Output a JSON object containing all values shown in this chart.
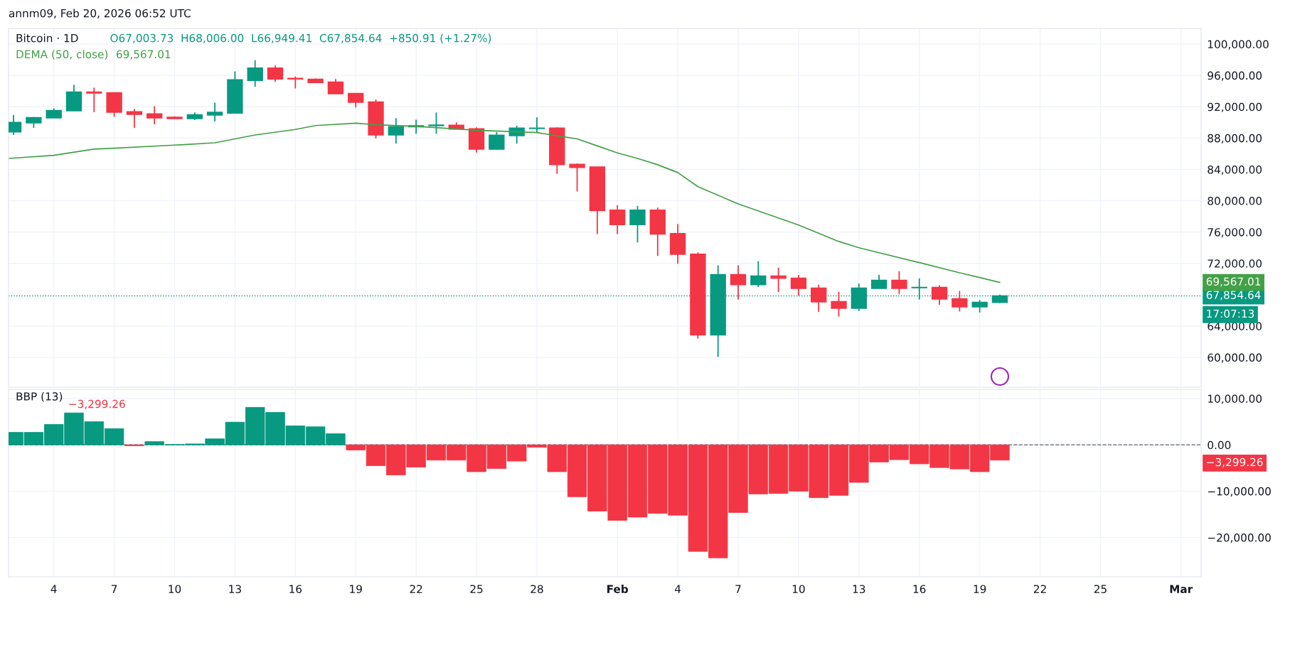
{
  "chart_data": [
    {
      "type": "candlestick",
      "title": "Bitcoin · 1D",
      "subtitle": "O67,003.73  H68,006.00  L66,949.41  C67,854.64  +850.91 (+1.27%)",
      "annotations": [
        "annm09, Feb 20, 2026 06:52 UTC",
        "17:07:13",
        "69,567.01"
      ],
      "x": [
        "2026-01-02",
        "2026-01-03",
        "2026-01-04",
        "2026-01-05",
        "2026-01-06",
        "2026-01-07",
        "2026-01-08",
        "2026-01-09",
        "2026-01-10",
        "2026-01-11",
        "2026-01-12",
        "2026-01-13",
        "2026-01-14",
        "2026-01-15",
        "2026-01-16",
        "2026-01-17",
        "2026-01-18",
        "2026-01-19",
        "2026-01-20",
        "2026-01-21",
        "2026-01-22",
        "2026-01-23",
        "2026-01-24",
        "2026-01-25",
        "2026-01-26",
        "2026-01-27",
        "2026-01-28",
        "2026-01-29",
        "2026-01-30",
        "2026-01-31",
        "2026-02-01",
        "2026-02-02",
        "2026-02-03",
        "2026-02-04",
        "2026-02-05",
        "2026-02-06",
        "2026-02-07",
        "2026-02-08",
        "2026-02-09",
        "2026-02-10",
        "2026-02-11",
        "2026-02-12",
        "2026-02-13",
        "2026-02-14",
        "2026-02-15",
        "2026-02-16",
        "2026-02-17",
        "2026-02-18",
        "2026-02-19",
        "2026-02-20"
      ],
      "ohlc": [
        [
          88770,
          90960,
          88400,
          90000
        ],
        [
          89940,
          90690,
          89310,
          90630
        ],
        [
          90570,
          91780,
          90570,
          91540
        ],
        [
          91480,
          94790,
          91480,
          93890
        ],
        [
          93890,
          94430,
          91300,
          93740
        ],
        [
          93800,
          93800,
          90720,
          91300
        ],
        [
          91360,
          91720,
          89310,
          91020
        ],
        [
          91090,
          92080,
          89760,
          90570
        ],
        [
          90660,
          90780,
          90480,
          90480
        ],
        [
          90480,
          91270,
          90300,
          90990
        ],
        [
          90930,
          92530,
          90120,
          91300
        ],
        [
          91180,
          96510,
          91120,
          95450
        ],
        [
          95360,
          97950,
          94550,
          96960
        ],
        [
          96960,
          97260,
          95180,
          95540
        ],
        [
          95630,
          95870,
          94340,
          95540
        ],
        [
          95510,
          95600,
          95090,
          95090
        ],
        [
          95150,
          95540,
          93650,
          93650
        ],
        [
          93710,
          93710,
          91900,
          92560
        ],
        [
          92620,
          92920,
          87950,
          88400
        ],
        [
          88400,
          90540,
          87290,
          89460
        ],
        [
          89430,
          90360,
          88550,
          89580
        ],
        [
          89580,
          91270,
          88550,
          89670
        ],
        [
          89640,
          90000,
          89130,
          89130
        ],
        [
          89190,
          89370,
          86150,
          86570
        ],
        [
          86570,
          88770,
          86510,
          88370
        ],
        [
          88310,
          89580,
          87290,
          89280
        ],
        [
          89220,
          90630,
          88770,
          89280
        ],
        [
          89280,
          89370,
          83430,
          84610
        ],
        [
          84670,
          84760,
          81180,
          84250
        ],
        [
          84310,
          84310,
          75750,
          78740
        ],
        [
          78800,
          79430,
          75750,
          76930
        ],
        [
          76930,
          79340,
          74670,
          78800
        ],
        [
          78800,
          79130,
          72950,
          75750
        ],
        [
          75810,
          77020,
          71960,
          73160
        ],
        [
          73190,
          73400,
          62410,
          62860
        ],
        [
          62860,
          71750,
          60060,
          70570
        ],
        [
          70570,
          71750,
          67380,
          69280
        ],
        [
          69280,
          72290,
          68980,
          70390
        ],
        [
          70390,
          71450,
          68340,
          70090
        ],
        [
          70120,
          70540,
          67890,
          68800
        ],
        [
          68860,
          69280,
          65810,
          67080
        ],
        [
          67140,
          68370,
          65210,
          66270
        ],
        [
          66270,
          69430,
          65930,
          68860
        ],
        [
          68800,
          70540,
          68800,
          69850
        ],
        [
          69850,
          71000,
          68070,
          68800
        ],
        [
          68890,
          70090,
          67380,
          68950
        ],
        [
          68950,
          69190,
          66720,
          67440
        ],
        [
          67500,
          68490,
          65870,
          66450
        ],
        [
          66450,
          67320,
          65720,
          67050
        ],
        [
          67003.73,
          68006.0,
          66949.41,
          67854.64
        ]
      ],
      "colors": [
        "#089981",
        "#089981",
        "#089981",
        "#089981",
        "#f23645",
        "#f23645",
        "#f23645",
        "#f23645",
        "#f23645",
        "#089981",
        "#089981",
        "#089981",
        "#089981",
        "#f23645",
        "#f23645",
        "#f23645",
        "#f23645",
        "#f23645",
        "#f23645",
        "#089981",
        "#089981",
        "#089981",
        "#f23645",
        "#f23645",
        "#089981",
        "#089981",
        "#089981",
        "#f23645",
        "#f23645",
        "#f23645",
        "#f23645",
        "#089981",
        "#f23645",
        "#f23645",
        "#f23645",
        "#089981",
        "#f23645",
        "#089981",
        "#f23645",
        "#f23645",
        "#f23645",
        "#f23645",
        "#089981",
        "#089981",
        "#f23645",
        "#089981",
        "#f23645",
        "#f23645",
        "#089981",
        "#089981"
      ],
      "series": [
        {
          "type": "line",
          "name": "DEMA (50, close)",
          "color": "#43a047",
          "x": [
            "2026-01-01T19:00",
            "2026-01-04",
            "2026-01-06",
            "2026-01-07",
            "2026-01-10",
            "2026-01-12",
            "2026-01-13",
            "2026-01-14",
            "2026-01-16",
            "2026-01-17",
            "2026-01-19",
            "2026-01-20",
            "2026-01-22",
            "2026-01-25",
            "2026-01-28",
            "2026-01-29",
            "2026-01-30",
            "2026-01-31",
            "2026-02-01",
            "2026-02-02",
            "2026-02-03",
            "2026-02-04",
            "2026-02-05",
            "2026-02-07",
            "2026-02-10",
            "2026-02-12",
            "2026-02-13",
            "2026-02-16",
            "2026-02-18",
            "2026-02-19",
            "2026-02-20"
          ],
          "values": [
            85400,
            85800,
            86600,
            86700,
            87100,
            87400,
            87900,
            88400,
            89100,
            89600,
            89900,
            89700,
            89500,
            89000,
            88700,
            88300,
            87900,
            87000,
            86100,
            85400,
            84600,
            83600,
            81800,
            79600,
            76900,
            74800,
            74000,
            72100,
            70800,
            70200,
            69567.01
          ]
        }
      ],
      "ref_lines": [
        {
          "axis": "y",
          "value": 67854.64,
          "label": "67,854.64",
          "color": "#089981",
          "line_style": "dotted"
        }
      ],
      "xlim": [
        "2026-01-01T18:00",
        "2026-03-02T00:00"
      ],
      "ylim": [
        56200,
        102000
      ],
      "xticks": [
        {
          "value": "2026-01-04",
          "label": null
        },
        {
          "value": "2026-01-07",
          "label": null
        },
        {
          "value": "2026-01-10",
          "label": null
        },
        {
          "value": "2026-01-13",
          "label": null
        },
        {
          "value": "2026-01-16",
          "label": null
        },
        {
          "value": "2026-01-19",
          "label": null
        },
        {
          "value": "2026-01-22",
          "label": null
        },
        {
          "value": "2026-01-25",
          "label": null
        },
        {
          "value": "2026-01-28",
          "label": null
        },
        {
          "value": "2026-02-01",
          "label": null
        },
        {
          "value": "2026-02-04",
          "label": null
        },
        {
          "value": "2026-02-07",
          "label": null
        },
        {
          "value": "2026-02-10",
          "label": null
        },
        {
          "value": "2026-02-13",
          "label": null
        },
        {
          "value": "2026-02-16",
          "label": null
        },
        {
          "value": "2026-02-19",
          "label": null
        },
        {
          "value": "2026-02-22",
          "label": null
        },
        {
          "value": "2026-02-25",
          "label": null
        },
        {
          "value": "2026-03-01",
          "label": null
        }
      ],
      "yticks": [
        {
          "value": 60000,
          "label": "60,000.00"
        },
        {
          "value": 64000,
          "label": "64,000.00"
        },
        {
          "value": 72000,
          "label": "72,000.00"
        },
        {
          "value": 76000,
          "label": "76,000.00"
        },
        {
          "value": 80000,
          "label": "80,000.00"
        },
        {
          "value": 84000,
          "label": "84,000.00"
        },
        {
          "value": 88000,
          "label": "88,000.00"
        },
        {
          "value": 92000,
          "label": "92,000.00"
        },
        {
          "value": 96000,
          "label": "96,000.00"
        },
        {
          "value": 100000,
          "label": "100,000.00"
        }
      ],
      "grid": true,
      "tick_labels": "y"
    },
    {
      "type": "bar",
      "title": "BBP (13)",
      "annotations": [
        "−3,299.26"
      ],
      "x": [
        "2026-01-02",
        "2026-01-03",
        "2026-01-04",
        "2026-01-05",
        "2026-01-06",
        "2026-01-07",
        "2026-01-08",
        "2026-01-09",
        "2026-01-10",
        "2026-01-11",
        "2026-01-12",
        "2026-01-13",
        "2026-01-14",
        "2026-01-15",
        "2026-01-16",
        "2026-01-17",
        "2026-01-18",
        "2026-01-19",
        "2026-01-20",
        "2026-01-21",
        "2026-01-22",
        "2026-01-23",
        "2026-01-24",
        "2026-01-25",
        "2026-01-26",
        "2026-01-27",
        "2026-01-28",
        "2026-01-29",
        "2026-01-30",
        "2026-01-31",
        "2026-02-01",
        "2026-02-02",
        "2026-02-03",
        "2026-02-04",
        "2026-02-05",
        "2026-02-06",
        "2026-02-07",
        "2026-02-08",
        "2026-02-09",
        "2026-02-10",
        "2026-02-11",
        "2026-02-12",
        "2026-02-13",
        "2026-02-14",
        "2026-02-15",
        "2026-02-16",
        "2026-02-17",
        "2026-02-18",
        "2026-02-19",
        "2026-02-20"
      ],
      "values": [
        2700,
        2700,
        4400,
        6900,
        5000,
        3500,
        -200,
        700,
        100,
        200,
        1300,
        4900,
        8100,
        7000,
        4100,
        3900,
        2400,
        -1100,
        -4500,
        -6500,
        -4800,
        -3300,
        -3300,
        -5800,
        -5100,
        -3500,
        -500,
        -5800,
        -11200,
        -14300,
        -16300,
        -15600,
        -14800,
        -15200,
        -23000,
        -24400,
        -14600,
        -10600,
        -10500,
        -10000,
        -11400,
        -10900,
        -8100,
        -3700,
        -3200,
        -4100,
        -4900,
        -5200,
        -5800,
        -3299.26
      ],
      "colors": [
        "#089981",
        "#089981",
        "#089981",
        "#089981",
        "#089981",
        "#089981",
        "#f23645",
        "#089981",
        "#089981",
        "#089981",
        "#089981",
        "#089981",
        "#089981",
        "#089981",
        "#089981",
        "#089981",
        "#089981",
        "#f23645",
        "#f23645",
        "#f23645",
        "#f23645",
        "#f23645",
        "#f23645",
        "#f23645",
        "#f23645",
        "#f23645",
        "#f23645",
        "#f23645",
        "#f23645",
        "#f23645",
        "#f23645",
        "#f23645",
        "#f23645",
        "#f23645",
        "#f23645",
        "#f23645",
        "#f23645",
        "#f23645",
        "#f23645",
        "#f23645",
        "#f23645",
        "#f23645",
        "#f23645",
        "#f23645",
        "#f23645",
        "#f23645",
        "#f23645",
        "#f23645",
        "#f23645",
        "#f23645"
      ],
      "ref_lines": [
        {
          "axis": "y",
          "value": 0,
          "color": "#787b86",
          "line_style": "dashed"
        }
      ],
      "xlim": [
        "2026-01-01T18:00",
        "2026-03-02T00:00"
      ],
      "ylim": [
        -28500,
        12000
      ],
      "xticks": [
        {
          "value": "2026-01-04",
          "label": "4"
        },
        {
          "value": "2026-01-07",
          "label": "7"
        },
        {
          "value": "2026-01-10",
          "label": "10"
        },
        {
          "value": "2026-01-13",
          "label": "13"
        },
        {
          "value": "2026-01-16",
          "label": "16"
        },
        {
          "value": "2026-01-19",
          "label": "19"
        },
        {
          "value": "2026-01-22",
          "label": "22"
        },
        {
          "value": "2026-01-25",
          "label": "25"
        },
        {
          "value": "2026-01-28",
          "label": "28"
        },
        {
          "value": "2026-02-01",
          "label": "Feb"
        },
        {
          "value": "2026-02-04",
          "label": "4"
        },
        {
          "value": "2026-02-07",
          "label": "7"
        },
        {
          "value": "2026-02-10",
          "label": "10"
        },
        {
          "value": "2026-02-13",
          "label": "13"
        },
        {
          "value": "2026-02-16",
          "label": "16"
        },
        {
          "value": "2026-02-19",
          "label": "19"
        },
        {
          "value": "2026-02-22",
          "label": "22"
        },
        {
          "value": "2026-02-25",
          "label": "25"
        },
        {
          "value": "2026-03-01",
          "label": "Mar"
        }
      ],
      "yticks": [
        {
          "value": -20000,
          "label": "−20,000.00"
        },
        {
          "value": -10000,
          "label": "−10,000.00"
        },
        {
          "value": 0,
          "label": "0.00"
        },
        {
          "value": 10000,
          "label": "10,000.00"
        }
      ],
      "grid": true
    }
  ]
}
